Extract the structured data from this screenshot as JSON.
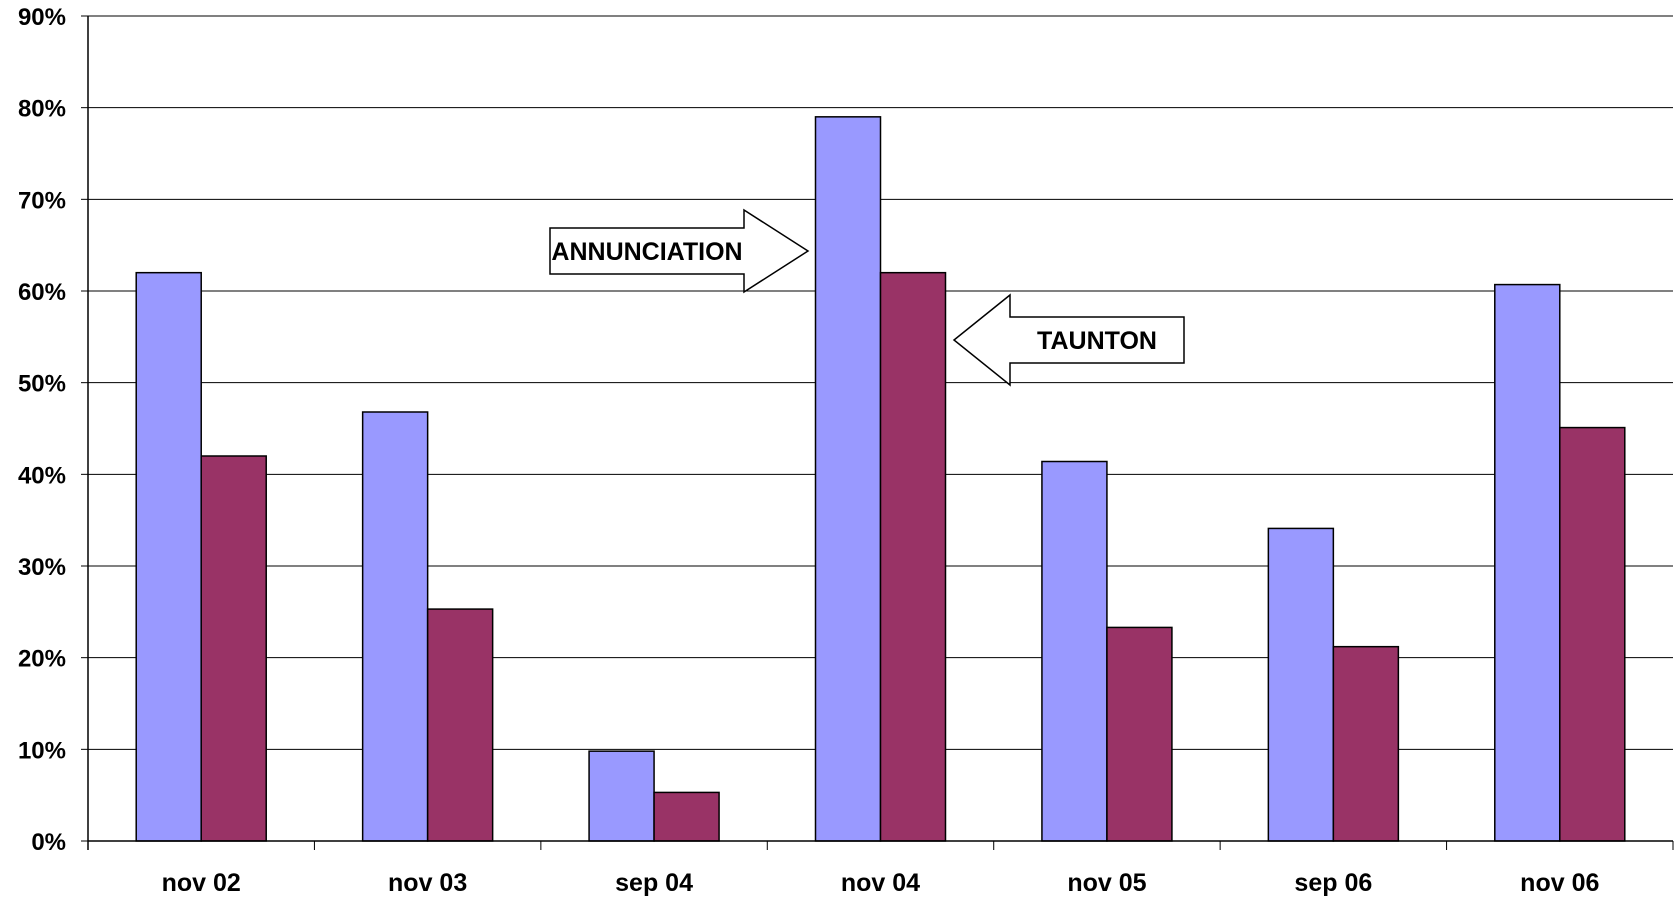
{
  "chart_data": {
    "type": "bar",
    "title": "",
    "xlabel": "",
    "ylabel": "",
    "ylim": [
      0,
      90
    ],
    "y_ticks": [
      "0%",
      "10%",
      "20%",
      "30%",
      "40%",
      "50%",
      "60%",
      "70%",
      "80%",
      "90%"
    ],
    "categories": [
      "nov 02",
      "nov 03",
      "sep 04",
      "nov 04",
      "nov 05",
      "sep 06",
      "nov 06"
    ],
    "grid": true,
    "legend": "none",
    "series": [
      {
        "color": "#9999FF",
        "values": [
          62,
          46.8,
          9.8,
          79,
          41.4,
          34.1,
          60.7
        ]
      },
      {
        "color": "#993366",
        "values": [
          42,
          25.3,
          5.3,
          62,
          23.3,
          21.2,
          45.1
        ]
      }
    ],
    "annotations": [
      {
        "text": "ANNUNCIATION",
        "direction": "right",
        "points_to": "nov 04, first series"
      },
      {
        "text": "TAUNTON",
        "direction": "left",
        "points_to": "nov 04, second series"
      }
    ]
  }
}
